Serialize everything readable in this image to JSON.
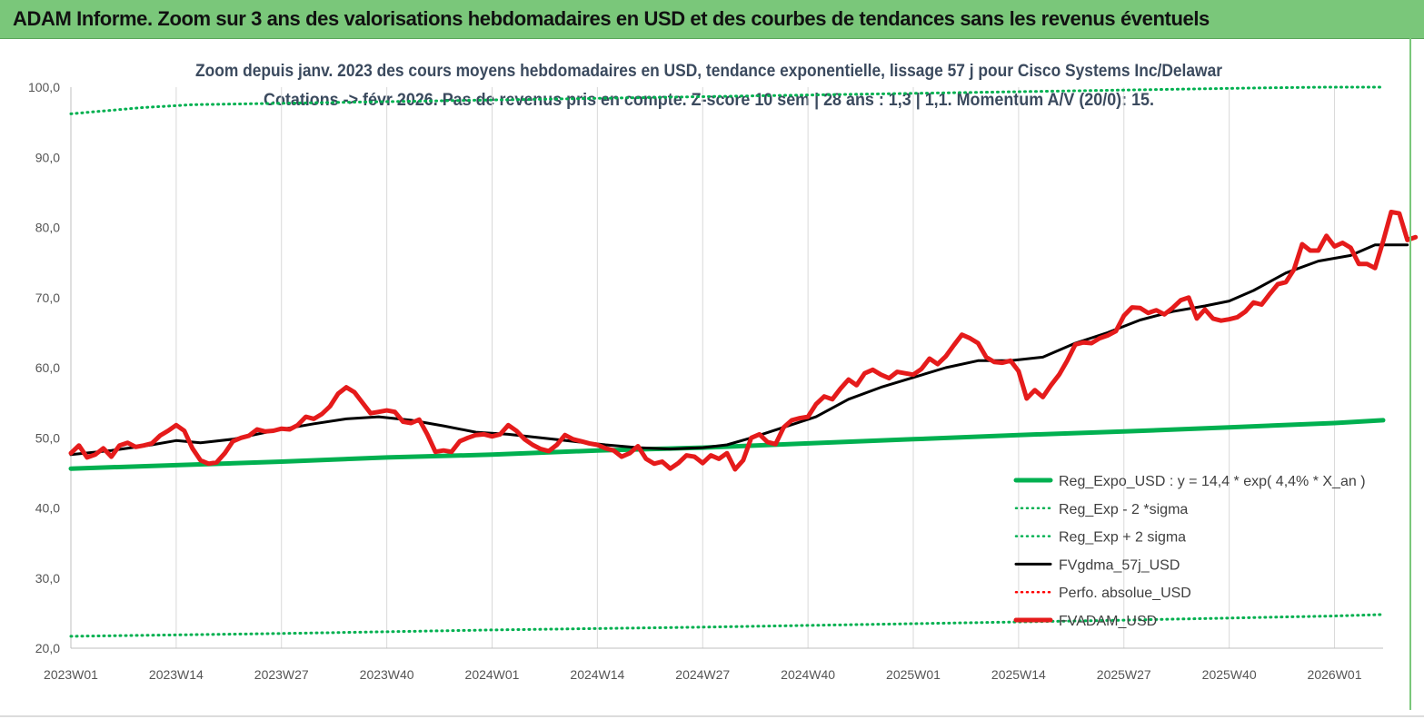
{
  "banner": {
    "title": "ADAM Informe. Zoom sur 3 ans des valorisations hebdomadaires en USD et des courbes de tendances sans les revenus éventuels"
  },
  "chart_data": {
    "type": "line",
    "title": "Zoom depuis janv. 2023 des cours moyens hebdomadaires en USD, tendance exponentielle, lissage 57 j pour Cisco Systems Inc/Delawar",
    "subtitle": "Cotations -> févr 2026.  Pas de revenus pris en compte. Z-score 10 sem  | 28 ans : 1,3  | 1,1. Momentum A/V (20/0): 15.",
    "xlabel": "",
    "ylabel": "",
    "ylim": [
      20,
      100
    ],
    "yticks": [
      "20,0",
      "30,0",
      "40,0",
      "50,0",
      "60,0",
      "70,0",
      "80,0",
      "90,0",
      "100,0"
    ],
    "xlim": [
      0,
      162
    ],
    "xtick_labels": [
      "2023W01",
      "2023W14",
      "2023W27",
      "2023W40",
      "2024W01",
      "2024W14",
      "2024W27",
      "2024W40",
      "2025W01",
      "2025W14",
      "2025W27",
      "2025W40",
      "2026W01"
    ],
    "xtick_positions": [
      0,
      13,
      26,
      39,
      52,
      65,
      78,
      91,
      104,
      117,
      130,
      143,
      156
    ],
    "grid": "vertical",
    "legend_position": "bottom-right",
    "series": [
      {
        "name": "Reg_Expo_USD : y = 14,4 * exp( 4,4% *  X_an )",
        "color": "#00b050",
        "style": "solid-thick",
        "points": [
          [
            0,
            45.6
          ],
          [
            13,
            46.1
          ],
          [
            26,
            46.6
          ],
          [
            39,
            47.2
          ],
          [
            52,
            47.6
          ],
          [
            65,
            48.2
          ],
          [
            78,
            48.6
          ],
          [
            91,
            49.2
          ],
          [
            104,
            49.8
          ],
          [
            117,
            50.4
          ],
          [
            130,
            50.9
          ],
          [
            143,
            51.5
          ],
          [
            156,
            52.1
          ],
          [
            162,
            52.5
          ]
        ]
      },
      {
        "name": "Reg_Exp - 2 *sigma",
        "color": "#00b050",
        "style": "dotted",
        "points": [
          [
            0,
            21.7
          ],
          [
            26,
            22.1
          ],
          [
            52,
            22.6
          ],
          [
            78,
            23.0
          ],
          [
            104,
            23.5
          ],
          [
            130,
            24.0
          ],
          [
            156,
            24.6
          ],
          [
            162,
            24.8
          ]
        ]
      },
      {
        "name": "Reg_Exp + 2 sigma",
        "color": "#00b050",
        "style": "dotted",
        "points": [
          [
            0,
            96.2
          ],
          [
            3,
            96.5
          ],
          [
            6,
            96.8
          ],
          [
            9,
            97.1
          ],
          [
            12,
            97.3
          ],
          [
            15,
            97.5
          ],
          [
            147,
            99.9
          ],
          [
            155,
            100.0
          ],
          [
            162,
            100.0
          ]
        ]
      },
      {
        "name": "FVgdma_57j_USD",
        "color": "#000000",
        "style": "solid",
        "points": [
          [
            0,
            47.6
          ],
          [
            5,
            48.2
          ],
          [
            10,
            49.0
          ],
          [
            13,
            49.6
          ],
          [
            16,
            49.3
          ],
          [
            20,
            49.8
          ],
          [
            25,
            51.0
          ],
          [
            30,
            52.0
          ],
          [
            34,
            52.7
          ],
          [
            38,
            53.0
          ],
          [
            42,
            52.5
          ],
          [
            46,
            51.7
          ],
          [
            50,
            50.8
          ],
          [
            54,
            50.5
          ],
          [
            58,
            50.0
          ],
          [
            62,
            49.5
          ],
          [
            66,
            49.0
          ],
          [
            70,
            48.6
          ],
          [
            74,
            48.4
          ],
          [
            78,
            48.6
          ],
          [
            81,
            49.0
          ],
          [
            84,
            50.0
          ],
          [
            88,
            51.5
          ],
          [
            92,
            53.0
          ],
          [
            96,
            55.5
          ],
          [
            100,
            57.2
          ],
          [
            104,
            58.6
          ],
          [
            108,
            60.0
          ],
          [
            112,
            61.0
          ],
          [
            116,
            61.0
          ],
          [
            120,
            61.5
          ],
          [
            124,
            63.5
          ],
          [
            128,
            65.0
          ],
          [
            132,
            66.8
          ],
          [
            136,
            68.0
          ],
          [
            140,
            68.8
          ],
          [
            143,
            69.5
          ],
          [
            146,
            71.0
          ],
          [
            150,
            73.5
          ],
          [
            154,
            75.2
          ],
          [
            158,
            76.0
          ],
          [
            161,
            77.5
          ],
          [
            165,
            77.5
          ]
        ]
      },
      {
        "name": "Perfo. absolue_USD",
        "color": "#ff0000",
        "style": "dotted",
        "points": []
      },
      {
        "name": "FVADAM_USD",
        "color": "#e51b1b",
        "style": "solid-thick",
        "points": [
          [
            0,
            47.8
          ],
          [
            1,
            48.9
          ],
          [
            2,
            47.2
          ],
          [
            3,
            47.6
          ],
          [
            4,
            48.5
          ],
          [
            5,
            47.3
          ],
          [
            6,
            48.9
          ],
          [
            7,
            49.3
          ],
          [
            8,
            48.7
          ],
          [
            9,
            48.9
          ],
          [
            10,
            49.2
          ],
          [
            11,
            50.3
          ],
          [
            12,
            51.0
          ],
          [
            13,
            51.8
          ],
          [
            14,
            51.0
          ],
          [
            15,
            48.5
          ],
          [
            16,
            46.8
          ],
          [
            17,
            46.3
          ],
          [
            18,
            46.5
          ],
          [
            19,
            47.8
          ],
          [
            20,
            49.5
          ],
          [
            21,
            50.0
          ],
          [
            22,
            50.3
          ],
          [
            23,
            51.2
          ],
          [
            24,
            50.9
          ],
          [
            25,
            51.0
          ],
          [
            26,
            51.3
          ],
          [
            27,
            51.2
          ],
          [
            28,
            51.8
          ],
          [
            29,
            53.0
          ],
          [
            30,
            52.7
          ],
          [
            31,
            53.4
          ],
          [
            32,
            54.5
          ],
          [
            33,
            56.3
          ],
          [
            34,
            57.2
          ],
          [
            35,
            56.5
          ],
          [
            36,
            55.0
          ],
          [
            37,
            53.5
          ],
          [
            38,
            53.7
          ],
          [
            39,
            53.9
          ],
          [
            40,
            53.7
          ],
          [
            41,
            52.3
          ],
          [
            42,
            52.1
          ],
          [
            43,
            52.6
          ],
          [
            44,
            50.5
          ],
          [
            45,
            48.0
          ],
          [
            46,
            48.2
          ],
          [
            47,
            48.0
          ],
          [
            48,
            49.5
          ],
          [
            49,
            50.0
          ],
          [
            50,
            50.4
          ],
          [
            51,
            50.5
          ],
          [
            52,
            50.2
          ],
          [
            53,
            50.5
          ],
          [
            54,
            51.8
          ],
          [
            55,
            51.0
          ],
          [
            56,
            49.8
          ],
          [
            57,
            49.0
          ],
          [
            58,
            48.4
          ],
          [
            59,
            48.1
          ],
          [
            60,
            49.0
          ],
          [
            61,
            50.4
          ],
          [
            62,
            49.8
          ],
          [
            63,
            49.5
          ],
          [
            64,
            49.2
          ],
          [
            65,
            49.0
          ],
          [
            66,
            48.5
          ],
          [
            67,
            48.2
          ],
          [
            68,
            47.3
          ],
          [
            69,
            47.8
          ],
          [
            70,
            48.8
          ],
          [
            71,
            47.0
          ],
          [
            72,
            46.3
          ],
          [
            73,
            46.6
          ],
          [
            74,
            45.6
          ],
          [
            75,
            46.4
          ],
          [
            76,
            47.5
          ],
          [
            77,
            47.3
          ],
          [
            78,
            46.4
          ],
          [
            79,
            47.5
          ],
          [
            80,
            47.0
          ],
          [
            81,
            47.8
          ],
          [
            82,
            45.5
          ],
          [
            83,
            46.8
          ],
          [
            84,
            50.0
          ],
          [
            85,
            50.5
          ],
          [
            86,
            49.4
          ],
          [
            87,
            49.1
          ],
          [
            88,
            51.5
          ],
          [
            89,
            52.5
          ],
          [
            90,
            52.8
          ],
          [
            91,
            53.0
          ],
          [
            92,
            54.8
          ],
          [
            93,
            55.9
          ],
          [
            94,
            55.5
          ],
          [
            95,
            57.0
          ],
          [
            96,
            58.3
          ],
          [
            97,
            57.5
          ],
          [
            98,
            59.2
          ],
          [
            99,
            59.7
          ],
          [
            100,
            59.0
          ],
          [
            101,
            58.5
          ],
          [
            102,
            59.4
          ],
          [
            103,
            59.2
          ],
          [
            104,
            59.0
          ],
          [
            105,
            59.8
          ],
          [
            106,
            61.3
          ],
          [
            107,
            60.5
          ],
          [
            108,
            61.6
          ],
          [
            109,
            63.2
          ],
          [
            110,
            64.7
          ],
          [
            111,
            64.2
          ],
          [
            112,
            63.5
          ],
          [
            113,
            61.5
          ],
          [
            114,
            60.8
          ],
          [
            115,
            60.7
          ],
          [
            116,
            61.0
          ],
          [
            117,
            59.5
          ],
          [
            118,
            55.6
          ],
          [
            119,
            56.8
          ],
          [
            120,
            55.8
          ],
          [
            121,
            57.5
          ],
          [
            122,
            59.0
          ],
          [
            123,
            61.0
          ],
          [
            124,
            63.3
          ],
          [
            125,
            63.6
          ],
          [
            126,
            63.5
          ],
          [
            127,
            64.2
          ],
          [
            128,
            64.6
          ],
          [
            129,
            65.2
          ],
          [
            130,
            67.4
          ],
          [
            131,
            68.6
          ],
          [
            132,
            68.5
          ],
          [
            133,
            67.8
          ],
          [
            134,
            68.2
          ],
          [
            135,
            67.6
          ],
          [
            136,
            68.5
          ],
          [
            137,
            69.6
          ],
          [
            138,
            70.0
          ],
          [
            139,
            67.0
          ],
          [
            140,
            68.3
          ],
          [
            141,
            67.0
          ],
          [
            142,
            66.7
          ],
          [
            143,
            66.9
          ],
          [
            144,
            67.2
          ],
          [
            145,
            68.0
          ],
          [
            146,
            69.3
          ],
          [
            147,
            69.0
          ],
          [
            148,
            70.5
          ],
          [
            149,
            71.9
          ],
          [
            150,
            72.2
          ],
          [
            151,
            74.0
          ],
          [
            152,
            77.6
          ],
          [
            153,
            76.7
          ],
          [
            154,
            76.7
          ],
          [
            155,
            78.8
          ],
          [
            156,
            77.3
          ],
          [
            157,
            77.8
          ],
          [
            158,
            77.1
          ],
          [
            159,
            74.8
          ],
          [
            160,
            74.8
          ],
          [
            161,
            74.2
          ],
          [
            162,
            78.0
          ],
          [
            163,
            82.2
          ],
          [
            164,
            82.0
          ],
          [
            165,
            78.2
          ],
          [
            166,
            78.6
          ]
        ]
      }
    ]
  }
}
